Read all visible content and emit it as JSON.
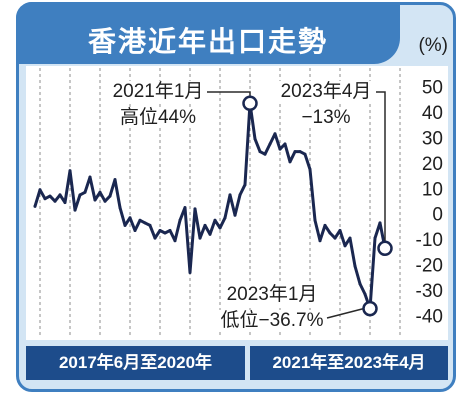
{
  "colors": {
    "frame": "#3f7fc0",
    "background": "#d3e5f4",
    "bar": "#1d4c8b",
    "line": "#1a2750",
    "grid": "#8e8e8e",
    "leader": "#2a2a2a"
  },
  "chart_data": {
    "type": "line",
    "title": "香港近年出口走勢",
    "unit": "(%)",
    "x": [
      "2017-06",
      "2017-07",
      "2017-08",
      "2017-09",
      "2017-10",
      "2017-11",
      "2017-12",
      "2018-01",
      "2018-02",
      "2018-03",
      "2018-04",
      "2018-05",
      "2018-06",
      "2018-07",
      "2018-08",
      "2018-09",
      "2018-10",
      "2018-11",
      "2018-12",
      "2019-01",
      "2019-02",
      "2019-03",
      "2019-04",
      "2019-05",
      "2019-06",
      "2019-07",
      "2019-08",
      "2019-09",
      "2019-10",
      "2019-11",
      "2019-12",
      "2020-01",
      "2020-02",
      "2020-03",
      "2020-04",
      "2020-05",
      "2020-06",
      "2020-07",
      "2020-08",
      "2020-09",
      "2020-10",
      "2020-11",
      "2020-12",
      "2021-01",
      "2021-02",
      "2021-03",
      "2021-04",
      "2021-05",
      "2021-06",
      "2021-07",
      "2021-08",
      "2021-09",
      "2021-10",
      "2021-11",
      "2021-12",
      "2022-01",
      "2022-02",
      "2022-03",
      "2022-04",
      "2022-05",
      "2022-06",
      "2022-07",
      "2022-08",
      "2022-09",
      "2022-10",
      "2022-11",
      "2022-12",
      "2023-01",
      "2023-02",
      "2023-03",
      "2023-04"
    ],
    "y": [
      3.5,
      10,
      6.5,
      7.5,
      5.5,
      8,
      5,
      17.5,
      2,
      8,
      9,
      15,
      6,
      9,
      5.5,
      7.5,
      14,
      3,
      -4,
      -1,
      -6,
      -2,
      -3,
      -4,
      -9,
      -6,
      -7,
      -6,
      -10,
      -2,
      3,
      -22.5,
      2.5,
      -9,
      -4,
      -7.5,
      -2,
      -5,
      -1,
      8,
      0,
      8,
      12,
      44,
      30,
      25,
      24,
      28,
      32,
      26,
      28,
      21,
      25,
      25,
      24,
      18,
      -2,
      -10,
      -4,
      -7,
      -9,
      -6,
      -12,
      -9,
      -20,
      -27,
      -31,
      -36.7,
      -9,
      -3,
      -13
    ],
    "ylim": [
      -40,
      50
    ],
    "yticks": [
      "50",
      "40",
      "30",
      "20",
      "10",
      "0",
      "-10",
      "-20",
      "-30",
      "-40"
    ],
    "grid": {
      "x": true,
      "y": false
    },
    "annotations": [
      {
        "date": "2021-01",
        "value": 44,
        "lines": [
          "2021年1月",
          "高位44%"
        ]
      },
      {
        "date": "2023-04",
        "value": -13,
        "lines": [
          "2023年4月",
          "−13%"
        ]
      },
      {
        "date": "2023-01",
        "value": -36.7,
        "lines": [
          "2023年1月",
          "低位−36.7%"
        ]
      }
    ],
    "period_labels": [
      "2017年6月至2020年",
      "2021年至2023年4月"
    ]
  }
}
